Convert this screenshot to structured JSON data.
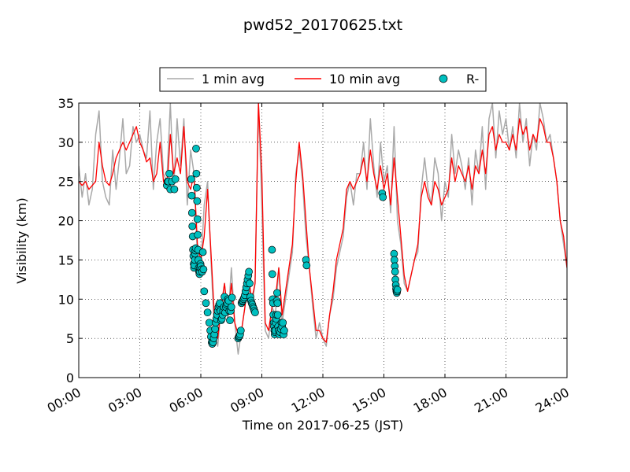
{
  "chart_data": {
    "type": "line",
    "title": "pwd52_20170625.txt",
    "xlabel": "Time on 2017-06-25 (JST)",
    "ylabel": "Visibility (km)",
    "xlim": [
      "00:00",
      "24:00"
    ],
    "ylim": [
      0,
      35
    ],
    "x_ticks": [
      "00:00",
      "03:00",
      "06:00",
      "09:00",
      "12:00",
      "15:00",
      "18:00",
      "21:00",
      "24:00"
    ],
    "y_ticks": [
      "0",
      "5",
      "10",
      "15",
      "20",
      "25",
      "30",
      "35"
    ],
    "grid": true,
    "legend_position": "top-center",
    "series": [
      {
        "name": "1 min avg",
        "kind": "line",
        "color": "#a9a9a9",
        "x": [
          "00:00",
          "00:10",
          "00:20",
          "00:30",
          "00:40",
          "00:50",
          "01:00",
          "01:10",
          "01:20",
          "01:30",
          "01:40",
          "01:50",
          "02:00",
          "02:10",
          "02:20",
          "02:30",
          "02:40",
          "02:50",
          "03:00",
          "03:10",
          "03:20",
          "03:30",
          "03:40",
          "03:50",
          "04:00",
          "04:10",
          "04:20",
          "04:30",
          "04:40",
          "04:50",
          "05:00",
          "05:10",
          "05:20",
          "05:30",
          "05:40",
          "05:50",
          "06:00",
          "06:10",
          "06:20",
          "06:30",
          "06:40",
          "06:50",
          "07:00",
          "07:10",
          "07:20",
          "07:30",
          "07:40",
          "07:50",
          "08:00",
          "08:10",
          "08:20",
          "08:30",
          "08:40",
          "08:50",
          "09:00",
          "09:10",
          "09:20",
          "09:30",
          "09:40",
          "09:50",
          "10:00",
          "10:10",
          "10:20",
          "10:30",
          "10:40",
          "10:50",
          "11:00",
          "11:10",
          "11:20",
          "11:30",
          "11:40",
          "11:50",
          "12:00",
          "12:10",
          "12:20",
          "12:30",
          "12:40",
          "12:50",
          "13:00",
          "13:10",
          "13:20",
          "13:30",
          "13:40",
          "13:50",
          "14:00",
          "14:10",
          "14:20",
          "14:30",
          "14:40",
          "14:50",
          "15:00",
          "15:10",
          "15:20",
          "15:30",
          "15:40",
          "15:50",
          "16:00",
          "16:10",
          "16:20",
          "16:30",
          "16:40",
          "16:50",
          "17:00",
          "17:10",
          "17:20",
          "17:30",
          "17:40",
          "17:50",
          "18:00",
          "18:10",
          "18:20",
          "18:30",
          "18:40",
          "18:50",
          "19:00",
          "19:10",
          "19:20",
          "19:30",
          "19:40",
          "19:50",
          "20:00",
          "20:10",
          "20:20",
          "20:30",
          "20:40",
          "20:50",
          "21:00",
          "21:10",
          "21:20",
          "21:30",
          "21:40",
          "21:50",
          "22:00",
          "22:10",
          "22:20",
          "22:30",
          "22:40",
          "22:50",
          "23:00",
          "23:10",
          "23:20",
          "23:30",
          "23:40",
          "23:50",
          "24:00"
        ],
        "y": [
          27,
          23,
          26,
          22,
          24,
          31,
          34,
          25,
          23,
          22,
          29,
          24,
          28,
          33,
          26,
          27,
          32,
          30,
          31,
          29,
          28,
          34,
          24,
          30,
          33,
          26,
          25,
          35,
          24,
          33,
          27,
          33,
          22,
          29,
          26,
          15,
          14,
          22,
          25,
          15,
          6,
          4,
          9,
          12,
          7,
          14,
          7,
          3,
          6,
          9,
          13,
          9,
          12,
          35,
          22,
          6,
          5,
          9,
          8,
          14,
          7,
          10,
          13,
          16,
          26,
          29,
          25,
          18,
          14,
          9,
          5,
          7,
          5,
          4,
          8,
          10,
          14,
          16,
          18,
          23,
          25,
          22,
          26,
          26,
          30,
          24,
          33,
          27,
          23,
          30,
          25,
          27,
          21,
          32,
          20,
          17,
          12,
          11,
          13,
          15,
          16,
          24,
          28,
          24,
          22,
          28,
          26,
          20,
          25,
          23,
          31,
          26,
          29,
          27,
          24,
          28,
          22,
          29,
          26,
          32,
          24,
          33,
          35,
          28,
          34,
          31,
          33,
          29,
          32,
          28,
          35,
          30,
          33,
          27,
          31,
          29,
          35,
          33,
          30,
          31,
          28,
          25,
          20,
          17,
          14
        ]
      },
      {
        "name": "10 min avg",
        "kind": "line",
        "color": "#ff0000",
        "x": [
          "00:00",
          "00:10",
          "00:20",
          "00:30",
          "00:40",
          "00:50",
          "01:00",
          "01:10",
          "01:20",
          "01:30",
          "01:40",
          "01:50",
          "02:00",
          "02:10",
          "02:20",
          "02:30",
          "02:40",
          "02:50",
          "03:00",
          "03:10",
          "03:20",
          "03:30",
          "03:40",
          "03:50",
          "04:00",
          "04:10",
          "04:20",
          "04:30",
          "04:40",
          "04:50",
          "05:00",
          "05:10",
          "05:20",
          "05:30",
          "05:40",
          "05:50",
          "06:00",
          "06:10",
          "06:20",
          "06:30",
          "06:40",
          "06:50",
          "07:00",
          "07:10",
          "07:20",
          "07:30",
          "07:40",
          "07:50",
          "08:00",
          "08:10",
          "08:20",
          "08:30",
          "08:40",
          "08:50",
          "09:00",
          "09:10",
          "09:20",
          "09:30",
          "09:40",
          "09:50",
          "10:00",
          "10:10",
          "10:20",
          "10:30",
          "10:40",
          "10:50",
          "11:00",
          "11:10",
          "11:20",
          "11:30",
          "11:40",
          "11:50",
          "12:00",
          "12:10",
          "12:20",
          "12:30",
          "12:40",
          "12:50",
          "13:00",
          "13:10",
          "13:20",
          "13:30",
          "13:40",
          "13:50",
          "14:00",
          "14:10",
          "14:20",
          "14:30",
          "14:40",
          "14:50",
          "15:00",
          "15:10",
          "15:20",
          "15:30",
          "15:40",
          "15:50",
          "16:00",
          "16:10",
          "16:20",
          "16:30",
          "16:40",
          "16:50",
          "17:00",
          "17:10",
          "17:20",
          "17:30",
          "17:40",
          "17:50",
          "18:00",
          "18:10",
          "18:20",
          "18:30",
          "18:40",
          "18:50",
          "19:00",
          "19:10",
          "19:20",
          "19:30",
          "19:40",
          "19:50",
          "20:00",
          "20:10",
          "20:20",
          "20:30",
          "20:40",
          "20:50",
          "21:00",
          "21:10",
          "21:20",
          "21:30",
          "21:40",
          "21:50",
          "22:00",
          "22:10",
          "22:20",
          "22:30",
          "22:40",
          "22:50",
          "23:00",
          "23:10",
          "23:20",
          "23:30",
          "23:40",
          "23:50",
          "24:00"
        ],
        "y": [
          25,
          24.5,
          25,
          24,
          24.5,
          25,
          30,
          27,
          25,
          24.5,
          26,
          28,
          29,
          30,
          29,
          30,
          31,
          32,
          30,
          29,
          27.5,
          28,
          25,
          26,
          30,
          25,
          24,
          31,
          26,
          28,
          26,
          32,
          25,
          24,
          26,
          17,
          15,
          18,
          24,
          16,
          8,
          5,
          9,
          12,
          8,
          12,
          7,
          5.5,
          6,
          9,
          13,
          10,
          12,
          35,
          26,
          7,
          6,
          9,
          10,
          14,
          8,
          11,
          14,
          17,
          25,
          30,
          26,
          20,
          14,
          10,
          6,
          6,
          5,
          4.5,
          8,
          11,
          15,
          17,
          19,
          24,
          25,
          24,
          25,
          26,
          28,
          25,
          29,
          26,
          24,
          27,
          24,
          26,
          22,
          28,
          23,
          18,
          13,
          11,
          13,
          15,
          17,
          23,
          25,
          23,
          22,
          25,
          24,
          22,
          23,
          24,
          28,
          25,
          27,
          26,
          25,
          27,
          24,
          27,
          26,
          29,
          26,
          31,
          32,
          29,
          31,
          30,
          30,
          29,
          31,
          29,
          33,
          31,
          32,
          29,
          31,
          30,
          33,
          32,
          30,
          30,
          28,
          25,
          20,
          18,
          14
        ]
      },
      {
        "name": "R-",
        "kind": "scatter",
        "color": "#00bfbf",
        "x": [
          "04:20",
          "04:22",
          "04:24",
          "04:27",
          "04:30",
          "04:35",
          "04:42",
          "04:45",
          "05:32",
          "05:33",
          "05:34",
          "05:35",
          "05:36",
          "05:37",
          "05:38",
          "05:39",
          "05:40",
          "05:41",
          "05:42",
          "05:43",
          "05:44",
          "05:45",
          "05:46",
          "05:47",
          "05:48",
          "05:49",
          "05:50",
          "05:51",
          "05:52",
          "05:53",
          "05:54",
          "05:55",
          "05:56",
          "05:57",
          "05:58",
          "05:59",
          "06:00",
          "06:02",
          "06:04",
          "06:06",
          "06:08",
          "06:10",
          "06:15",
          "06:20",
          "06:25",
          "06:28",
          "06:30",
          "06:32",
          "06:34",
          "06:36",
          "06:38",
          "06:40",
          "06:42",
          "06:44",
          "06:46",
          "06:48",
          "06:50",
          "06:52",
          "06:54",
          "06:56",
          "06:58",
          "07:00",
          "07:02",
          "07:04",
          "07:06",
          "07:08",
          "07:10",
          "07:12",
          "07:14",
          "07:16",
          "07:18",
          "07:20",
          "07:22",
          "07:24",
          "07:26",
          "07:28",
          "07:30",
          "07:32",
          "07:50",
          "07:52",
          "07:54",
          "07:56",
          "07:58",
          "08:00",
          "08:02",
          "08:04",
          "08:06",
          "08:08",
          "08:10",
          "08:12",
          "08:14",
          "08:16",
          "08:18",
          "08:20",
          "08:22",
          "08:24",
          "08:26",
          "08:28",
          "08:30",
          "08:32",
          "08:34",
          "08:36",
          "08:38",
          "08:40",
          "09:30",
          "09:31",
          "09:32",
          "09:33",
          "09:34",
          "09:35",
          "09:36",
          "09:37",
          "09:38",
          "09:39",
          "09:40",
          "09:41",
          "09:42",
          "09:43",
          "09:44",
          "09:45",
          "09:46",
          "09:47",
          "09:48",
          "09:50",
          "09:52",
          "09:54",
          "09:56",
          "09:58",
          "10:00",
          "10:02",
          "10:04",
          "10:06",
          "11:10",
          "11:12",
          "14:55",
          "14:57",
          "15:30",
          "15:31",
          "15:32",
          "15:33",
          "15:34",
          "15:35",
          "15:36",
          "15:37",
          "15:38",
          "15:39",
          "15:40"
        ],
        "y": [
          24.5,
          25,
          25,
          26,
          24,
          25,
          24,
          25.3,
          25.3,
          23.2,
          21,
          19.3,
          18,
          16.3,
          15.5,
          14.5,
          14,
          14.3,
          15,
          15.8,
          16.2,
          16.5,
          29.2,
          26,
          24.2,
          22.5,
          20.2,
          18.2,
          16.3,
          15,
          14,
          13.5,
          13.2,
          13.5,
          14,
          14.5,
          14.2,
          13.8,
          13.5,
          16,
          13.8,
          11,
          9.5,
          8.3,
          7,
          6,
          5.2,
          4.5,
          4.3,
          4.5,
          5,
          5.5,
          6.2,
          7,
          7.5,
          8,
          8.5,
          9,
          9.3,
          9.5,
          8.5,
          7.3,
          7.5,
          8,
          8.5,
          9,
          10.3,
          8.3,
          9,
          9.3,
          9.5,
          10,
          9.8,
          8.5,
          7.3,
          8.5,
          9,
          10.2,
          5,
          5.2,
          5.3,
          5.5,
          6,
          9.5,
          9.7,
          9.8,
          10,
          10.2,
          10.5,
          11,
          11.5,
          12,
          12.5,
          13,
          13.5,
          12,
          10.3,
          9.8,
          9.5,
          9.3,
          9,
          8.8,
          8.5,
          8.3,
          16.3,
          13.2,
          10,
          9.5,
          8,
          7,
          6.5,
          6,
          5.5,
          5.8,
          6,
          7,
          7.5,
          8,
          9.8,
          10.8,
          9.5,
          8,
          6.5,
          6,
          5.5,
          5.8,
          6.2,
          7,
          6.5,
          7,
          5.5,
          6,
          15,
          14.3,
          23.5,
          23,
          15.8,
          15,
          14.2,
          13.5,
          12.5,
          11.8,
          11.3,
          11,
          10.8,
          11,
          11.2
        ]
      }
    ]
  }
}
